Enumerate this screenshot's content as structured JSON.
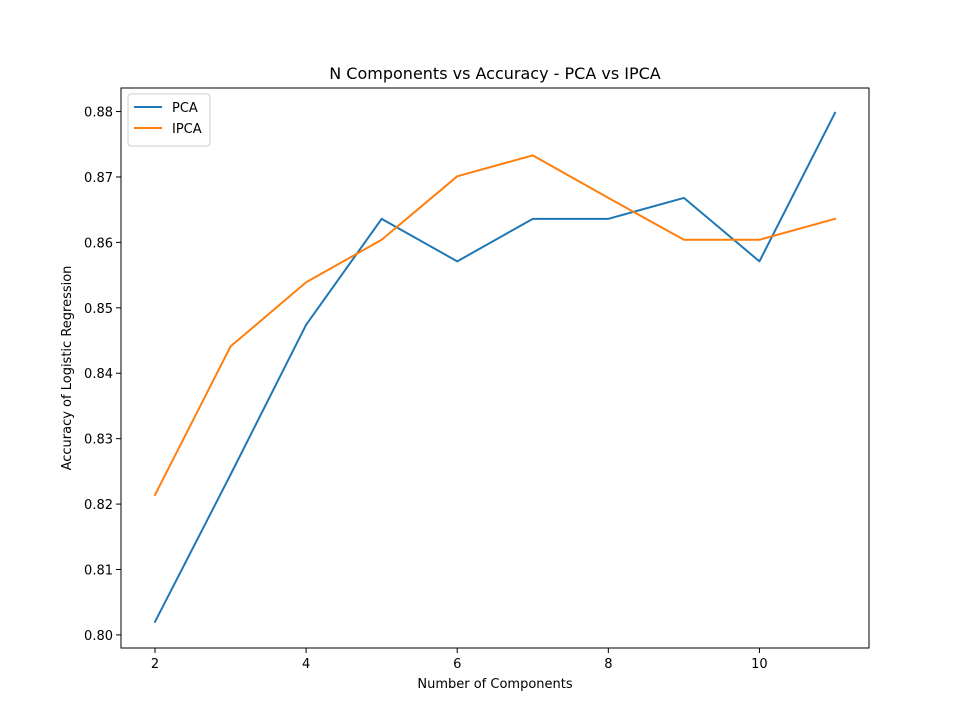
{
  "chart_data": {
    "type": "line",
    "title": "N Components vs Accuracy - PCA vs IPCA",
    "xlabel": "Number of Components",
    "ylabel": "Accuracy of Logistic Regression",
    "x": [
      2,
      3,
      4,
      5,
      6,
      7,
      8,
      9,
      10,
      11
    ],
    "xlim": [
      1.55,
      11.45
    ],
    "ylim": [
      0.798,
      0.8836
    ],
    "xticks": [
      2,
      4,
      6,
      8,
      10
    ],
    "xtick_labels": [
      "2",
      "4",
      "6",
      "8",
      "10"
    ],
    "yticks": [
      0.8,
      0.81,
      0.82,
      0.83,
      0.84,
      0.85,
      0.86,
      0.87,
      0.88
    ],
    "ytick_labels": [
      "0.80",
      "0.81",
      "0.82",
      "0.83",
      "0.84",
      "0.85",
      "0.86",
      "0.87",
      "0.88"
    ],
    "grid": false,
    "legend_position": "top-left",
    "series": [
      {
        "name": "PCA",
        "color": "#1f77b4",
        "values": [
          0.802,
          0.8245,
          0.8474,
          0.8636,
          0.8571,
          0.8636,
          0.8636,
          0.8668,
          0.8571,
          0.8798
        ]
      },
      {
        "name": "IPCA",
        "color": "#ff7f0e",
        "values": [
          0.8214,
          0.8441,
          0.8539,
          0.8604,
          0.8701,
          0.8733,
          0.8668,
          0.8604,
          0.8604,
          0.8636
        ]
      }
    ]
  }
}
